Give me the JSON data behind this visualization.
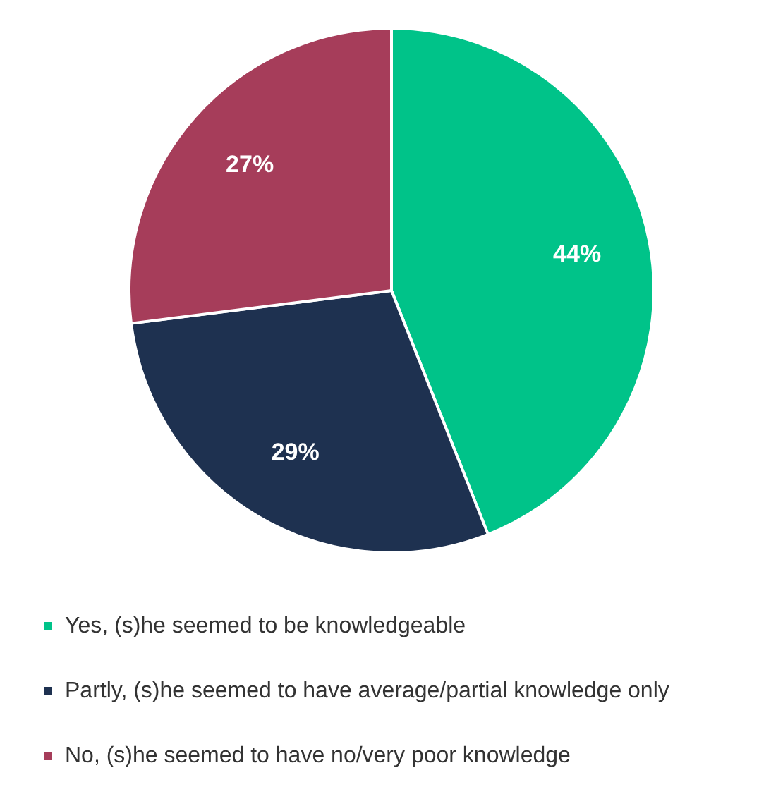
{
  "chart_data": {
    "type": "pie",
    "categories": [
      "Yes, (s)he seemed to be knowledgeable",
      "Partly, (s)he seemed to have average/partial knowledge only",
      "No, (s)he seemed to have no/very poor knowledge"
    ],
    "values": [
      44,
      29,
      27
    ],
    "colors": [
      "#00c389",
      "#1e3150",
      "#a63d5a"
    ],
    "value_labels": [
      "44%",
      "29%",
      "27%"
    ],
    "legend": "bottom"
  }
}
